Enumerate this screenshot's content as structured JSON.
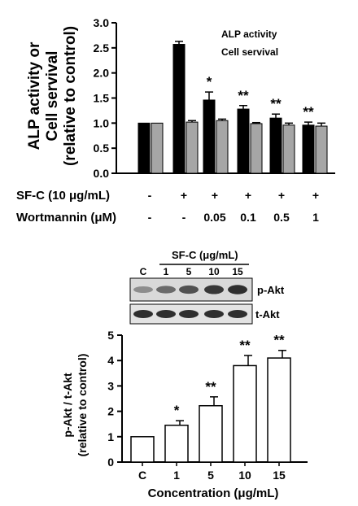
{
  "chart_data": [
    {
      "type": "bar",
      "ylabel_line1": "ALP activity or",
      "ylabel_line2": "Cell servival",
      "ylabel_line3": "(relative to control)",
      "ylim": [
        0,
        3.0
      ],
      "yticks": [
        "0.0",
        "0.5",
        "1.0",
        "1.5",
        "2.0",
        "2.5",
        "3.0"
      ],
      "legend": [
        "ALP activity",
        "Cell servival"
      ],
      "legend_placement": "top-right",
      "row_labels": [
        "SF-C (10 μg/mL)",
        "Wortmannin (μM)"
      ],
      "sfc_row": [
        "-",
        "+",
        "+",
        "+",
        "+",
        "+"
      ],
      "wortmannin_row": [
        "-",
        "-",
        "0.05",
        "0.1",
        "0.5",
        "1"
      ],
      "series": [
        {
          "name": "ALP activity",
          "color": "#000000",
          "values": [
            1.0,
            2.57,
            1.46,
            1.28,
            1.1,
            0.96
          ],
          "errors": [
            0.0,
            0.06,
            0.16,
            0.07,
            0.08,
            0.06
          ]
        },
        {
          "name": "Cell servival",
          "color": "#a6a6a6",
          "values": [
            1.0,
            1.02,
            1.05,
            0.99,
            0.96,
            0.94
          ],
          "errors": [
            0.0,
            0.03,
            0.03,
            0.02,
            0.04,
            0.06
          ]
        }
      ],
      "significance": [
        "",
        "",
        "*",
        "**",
        "**",
        "**"
      ]
    },
    {
      "type": "bar",
      "ylabel_line1": "p-Akt / t-Akt",
      "ylabel_line2": "(relative to control)",
      "xlabel": "Concentration (μg/mL)",
      "ylim": [
        0,
        5
      ],
      "yticks": [
        "0",
        "1",
        "2",
        "3",
        "4",
        "5"
      ],
      "categories": [
        "C",
        "1",
        "5",
        "10",
        "15"
      ],
      "values": [
        1.0,
        1.45,
        2.22,
        3.8,
        4.1
      ],
      "errors": [
        0.0,
        0.18,
        0.35,
        0.4,
        0.3
      ],
      "significance": [
        "",
        "*",
        "**",
        "**",
        "**"
      ]
    }
  ],
  "blot": {
    "treatment_label": "SF-C (μg/mL)",
    "lanes": [
      "C",
      "1",
      "5",
      "10",
      "15"
    ],
    "bands": [
      "p-Akt",
      "t-Akt"
    ],
    "p_akt_intensity": [
      0.35,
      0.55,
      0.7,
      0.85,
      0.9
    ],
    "t_akt_intensity": [
      0.9,
      0.9,
      0.9,
      0.9,
      0.9
    ]
  }
}
